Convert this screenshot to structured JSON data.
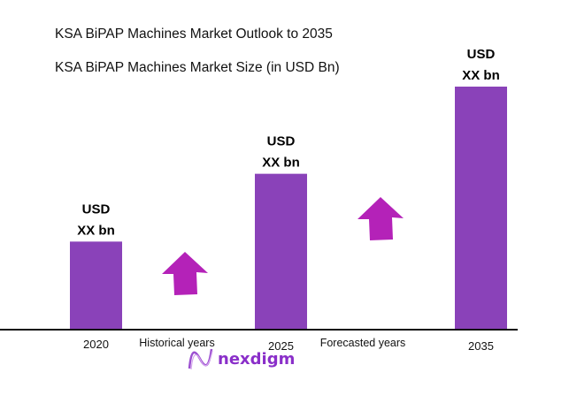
{
  "titles": {
    "main": "KSA BiPAP Machines Market Outlook to 2035",
    "sub": "KSA BiPAP Machines Market Size (in USD Bn)"
  },
  "chart_data": {
    "type": "bar",
    "title": "KSA BiPAP Machines Market Size (in USD Bn)",
    "categories": [
      "2020",
      "2025",
      "2035"
    ],
    "values": [
      36,
      64,
      100
    ],
    "value_note": "relative bar heights, 2035 = 100",
    "data_labels": [
      [
        "USD",
        "XX bn"
      ],
      [
        "USD",
        "XX bn"
      ],
      [
        "USD",
        "XX bn"
      ]
    ],
    "period_labels": [
      "Historical years",
      "Forecasted years"
    ],
    "bar_color": "#8a42b9",
    "arrow_color": "#b422b8",
    "grid": false
  },
  "logo": {
    "text": "nexdigm",
    "color": "#8a2fc9"
  }
}
